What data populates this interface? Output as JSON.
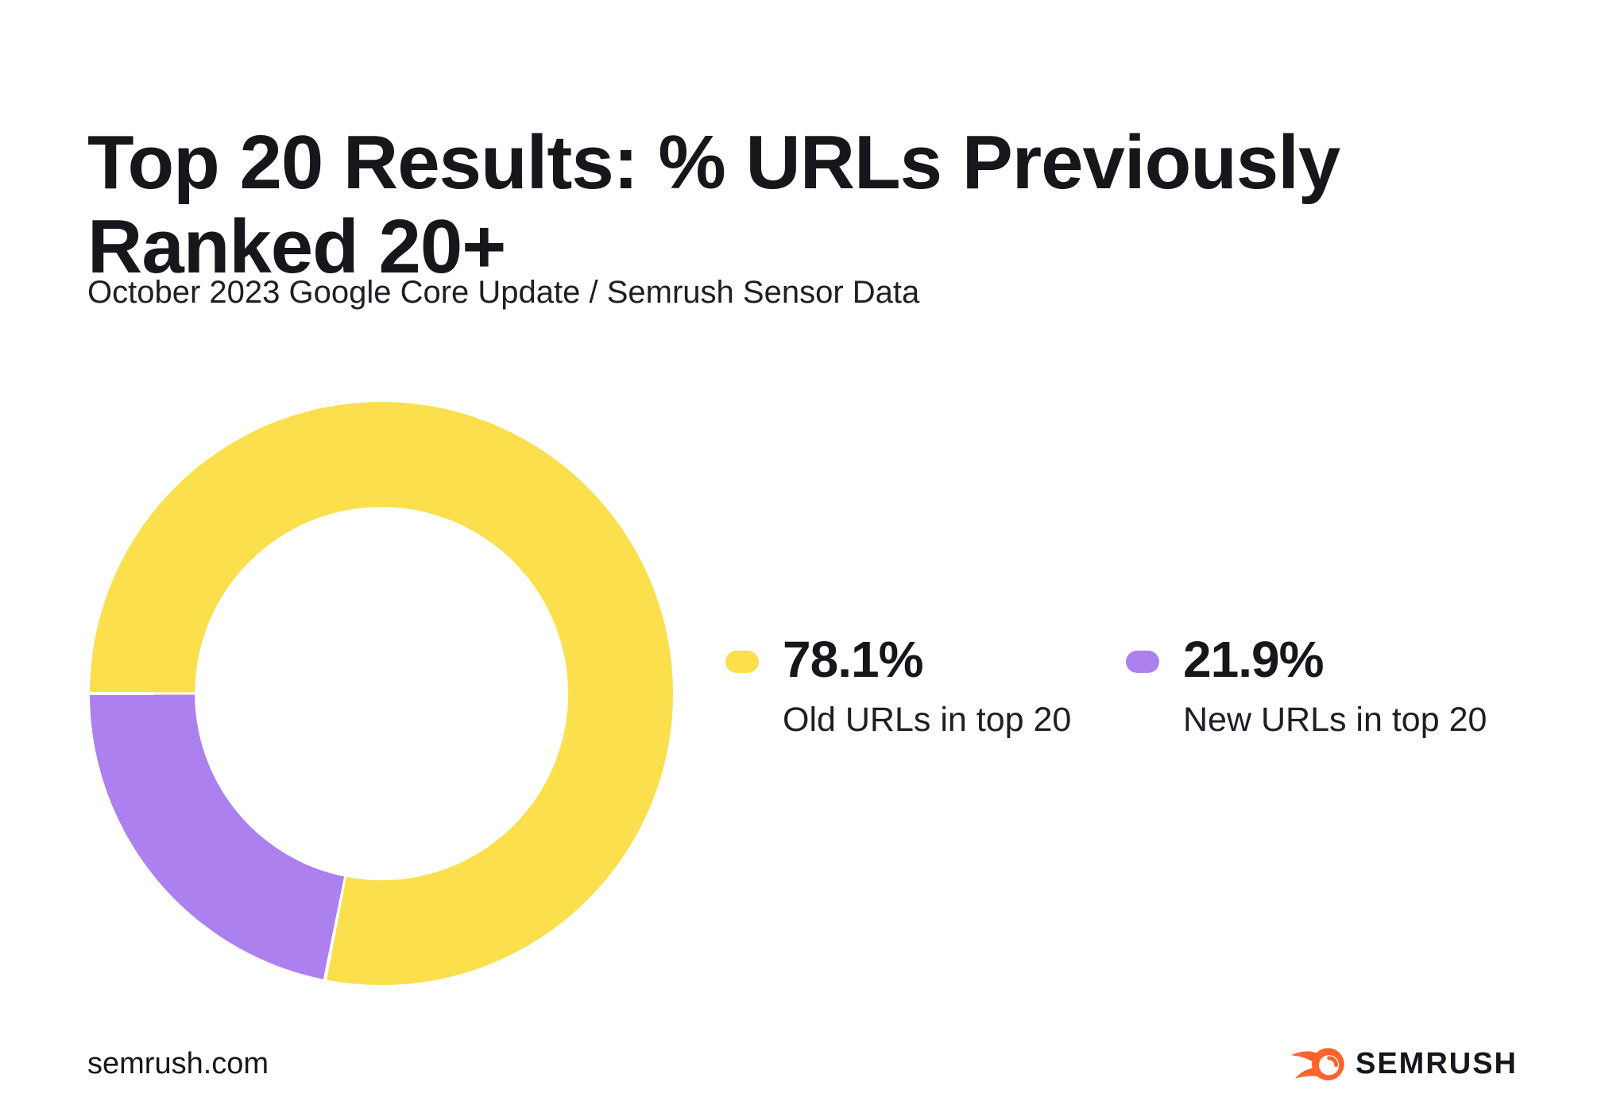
{
  "page": {
    "title_line1": "Top 20 Results: % URLs Previously",
    "title_line2": "Ranked 20+",
    "subtitle": "October 2023 Google Core Update / Semrush Sensor Data",
    "footer_url": "semrush.com",
    "brand_name": "SEMRUSH"
  },
  "chart_data": {
    "type": "pie",
    "variant": "donut",
    "title": "Top 20 Results: % URLs Previously Ranked 20+",
    "subtitle": "October 2023 Google Core Update / Semrush Sensor Data",
    "labels": [
      "Old URLs in top 20",
      "New URLs in top 20"
    ],
    "values": [
      78.1,
      21.9
    ],
    "value_labels": [
      "78.1%",
      "21.9%"
    ],
    "colors": [
      "#FBDF4D",
      "#AC80EE"
    ],
    "start_angle_deg": 270,
    "direction": "clockwise",
    "inner_radius_ratio": 0.64,
    "segment_gap_deg": 0.7,
    "gap_color": "#ffffff",
    "legend_position": "right",
    "grid": false
  },
  "legend": {
    "items": [
      {
        "value": "78.1%",
        "label": "Old URLs in top 20",
        "color": "#FBDF4D"
      },
      {
        "value": "21.9%",
        "label": "New URLs in top 20",
        "color": "#AC80EE"
      }
    ]
  },
  "colors": {
    "accent_orange": "#FF642D",
    "ink": "#15171B",
    "background": "#FFFFFF"
  }
}
